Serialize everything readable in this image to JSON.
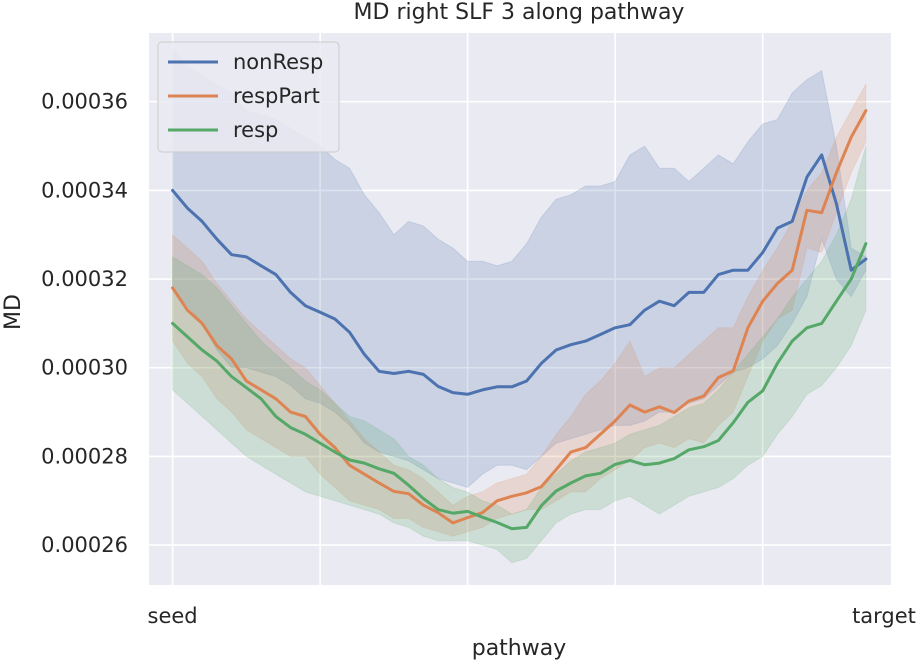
{
  "chart_data": {
    "type": "line",
    "title": "MD right SLF 3 along pathway",
    "xlabel": "pathway",
    "ylabel": "MD",
    "x_tick_labels": {
      "start": "seed",
      "end": "target"
    },
    "xlim": [
      -1.6,
      48.7
    ],
    "ylim": [
      0.000251,
      0.0003755
    ],
    "y_ticks": [
      0.00026,
      0.00028,
      0.0003,
      0.00032,
      0.00034,
      0.00036
    ],
    "y_tick_labels": [
      "0.00026",
      "0.00028",
      "0.00030",
      "0.00032",
      "0.00034",
      "0.00036"
    ],
    "grid": true,
    "legend_position": "top-left",
    "background": "#eaeaf2",
    "series": [
      {
        "name": "nonResp",
        "color": "#4c72b0",
        "x": [
          0,
          1,
          2,
          3,
          4,
          5,
          6,
          7,
          8,
          9,
          10,
          11,
          12,
          13,
          14,
          15,
          16,
          17,
          18,
          19,
          20,
          21,
          22,
          23,
          24,
          25,
          26,
          27,
          28,
          29,
          30,
          31,
          32,
          33,
          34,
          35,
          36,
          37,
          38,
          39,
          40,
          41,
          42,
          43,
          44,
          45,
          46,
          47
        ],
        "y": [
          0.00034,
          0.000336,
          0.000333,
          0.000329,
          0.0003255,
          0.000325,
          0.000323,
          0.000321,
          0.000317,
          0.000314,
          0.0003125,
          0.000311,
          0.000308,
          0.000303,
          0.0002992,
          0.0002987,
          0.0002992,
          0.0002985,
          0.0002958,
          0.0002944,
          0.000294,
          0.000295,
          0.0002957,
          0.0002957,
          0.000297,
          0.000301,
          0.000304,
          0.0003052,
          0.000306,
          0.0003075,
          0.000309,
          0.0003097,
          0.000313,
          0.000315,
          0.000314,
          0.000317,
          0.000317,
          0.000321,
          0.000322,
          0.000322,
          0.000326,
          0.0003315,
          0.000333,
          0.000343,
          0.000348,
          0.000337,
          0.000322,
          0.0003245
        ],
        "band_upper": [
          0.000372,
          0.000368,
          0.000366,
          0.000364,
          0.000362,
          0.000358,
          0.000357,
          0.000356,
          0.000354,
          0.000352,
          0.00035,
          0.000347,
          0.000345,
          0.000339,
          0.000335,
          0.00033,
          0.000333,
          0.000332,
          0.000329,
          0.000327,
          0.000324,
          0.000324,
          0.000323,
          0.000324,
          0.000328,
          0.000334,
          0.000338,
          0.000339,
          0.000341,
          0.000341,
          0.000342,
          0.000348,
          0.00035,
          0.000345,
          0.000345,
          0.000342,
          0.000345,
          0.000348,
          0.000346,
          0.000351,
          0.000355,
          0.000356,
          0.000362,
          0.000365,
          0.000367,
          0.00035,
          0.000327,
          0.000325
        ],
        "band_lower": [
          0.000318,
          0.000314,
          0.00031,
          0.000304,
          0.0003,
          0.0003,
          0.000299,
          0.000298,
          0.000296,
          0.000293,
          0.000292,
          0.00029,
          0.000287,
          0.000283,
          0.000281,
          0.00028,
          0.000279,
          0.000277,
          0.000275,
          0.000274,
          0.000273,
          0.000276,
          0.000278,
          0.000278,
          0.000277,
          0.00028,
          0.000283,
          0.000284,
          0.000285,
          0.000286,
          0.000287,
          0.000287,
          0.000288,
          0.00029,
          0.00029,
          0.000292,
          0.000293,
          0.000296,
          0.000299,
          0.0003,
          0.000302,
          0.000305,
          0.00031,
          0.000316,
          0.000329,
          0.00032,
          0.000316,
          0.000322
        ]
      },
      {
        "name": "respPart",
        "color": "#dd8452",
        "x": [
          0,
          1,
          2,
          3,
          4,
          5,
          6,
          7,
          8,
          9,
          10,
          11,
          12,
          13,
          14,
          15,
          16,
          17,
          18,
          19,
          20,
          21,
          22,
          23,
          24,
          25,
          26,
          27,
          28,
          29,
          30,
          31,
          32,
          33,
          34,
          35,
          36,
          37,
          38,
          39,
          40,
          41,
          42,
          43,
          44,
          45,
          46,
          47
        ],
        "y": [
          0.000318,
          0.000313,
          0.00031,
          0.000305,
          0.000302,
          0.000297,
          0.000295,
          0.000293,
          0.00029,
          0.000289,
          0.000285,
          0.000282,
          0.000278,
          0.000276,
          0.000274,
          0.0002721,
          0.0002716,
          0.000269,
          0.0002673,
          0.000265,
          0.0002662,
          0.0002673,
          0.00027,
          0.000271,
          0.0002718,
          0.0002732,
          0.000277,
          0.000281,
          0.000282,
          0.000285,
          0.000288,
          0.0002916,
          0.00029,
          0.0002912,
          0.0002899,
          0.0002925,
          0.0002936,
          0.0002978,
          0.0002993,
          0.000309,
          0.000315,
          0.000319,
          0.000322,
          0.0003355,
          0.000335,
          0.000344,
          0.000352,
          0.000358
        ],
        "band_upper": [
          0.00033,
          0.000327,
          0.000324,
          0.000319,
          0.000315,
          0.000311,
          0.000308,
          0.000305,
          0.000302,
          0.0003,
          0.000296,
          0.000292,
          0.000288,
          0.000284,
          0.000281,
          0.000278,
          0.000277,
          0.000275,
          0.000272,
          0.000269,
          0.000271,
          0.000272,
          0.000274,
          0.000275,
          0.000276,
          0.00028,
          0.000285,
          0.000289,
          0.000294,
          0.000297,
          0.000301,
          0.000306,
          0.000298,
          0.0003,
          0.0003,
          0.000303,
          0.000306,
          0.000309,
          0.000309,
          0.000316,
          0.000322,
          0.000327,
          0.000333,
          0.00034,
          0.000344,
          0.000352,
          0.000358,
          0.000364
        ],
        "band_lower": [
          0.000306,
          0.000301,
          0.000298,
          0.000293,
          0.00029,
          0.000286,
          0.000284,
          0.000282,
          0.00028,
          0.00028,
          0.000276,
          0.000273,
          0.00027,
          0.000269,
          0.000268,
          0.000266,
          0.000266,
          0.000264,
          0.000263,
          0.000262,
          0.000263,
          0.000264,
          0.000266,
          0.000267,
          0.000268,
          0.000268,
          0.00027,
          0.000272,
          0.000272,
          0.000275,
          0.000277,
          0.000279,
          0.000282,
          0.000283,
          0.000282,
          0.000284,
          0.000283,
          0.000287,
          0.00029,
          0.000298,
          0.000306,
          0.000311,
          0.000313,
          0.000327,
          0.000326,
          0.000335,
          0.000344,
          0.000351
        ]
      },
      {
        "name": "resp",
        "color": "#55a868",
        "x": [
          0,
          1,
          2,
          3,
          4,
          5,
          6,
          7,
          8,
          9,
          10,
          11,
          12,
          13,
          14,
          15,
          16,
          17,
          18,
          19,
          20,
          21,
          22,
          23,
          24,
          25,
          26,
          27,
          28,
          29,
          30,
          31,
          32,
          33,
          34,
          35,
          36,
          37,
          38,
          39,
          40,
          41,
          42,
          43,
          44,
          45,
          46,
          47
        ],
        "y": [
          0.00031,
          0.000307,
          0.000304,
          0.0003015,
          0.000298,
          0.0002955,
          0.000293,
          0.000289,
          0.0002865,
          0.000285,
          0.000283,
          0.000281,
          0.0002792,
          0.0002785,
          0.0002772,
          0.0002762,
          0.0002735,
          0.0002705,
          0.000268,
          0.0002672,
          0.0002676,
          0.0002663,
          0.0002651,
          0.0002637,
          0.000264,
          0.0002689,
          0.0002722,
          0.000274,
          0.0002756,
          0.0002762,
          0.0002782,
          0.0002791,
          0.0002781,
          0.0002785,
          0.0002795,
          0.0002815,
          0.0002822,
          0.0002836,
          0.0002876,
          0.0002922,
          0.0002948,
          0.000301,
          0.000306,
          0.000309,
          0.00031,
          0.000315,
          0.00032,
          0.000328
        ],
        "band_upper": [
          0.000325,
          0.000323,
          0.000321,
          0.000318,
          0.000314,
          0.00031,
          0.000306,
          0.000303,
          0.0003,
          0.000297,
          0.000295,
          0.000292,
          0.000289,
          0.000288,
          0.000286,
          0.000284,
          0.00028,
          0.000278,
          0.000275,
          0.000273,
          0.000272,
          0.00027,
          0.000269,
          0.000267,
          0.000268,
          0.000273,
          0.000276,
          0.000279,
          0.000281,
          0.000282,
          0.000283,
          0.000285,
          0.000286,
          0.000287,
          0.000289,
          0.000291,
          0.000292,
          0.000295,
          0.000299,
          0.000303,
          0.000307,
          0.000311,
          0.000316,
          0.00032,
          0.000324,
          0.00033,
          0.000338,
          0.00035
        ],
        "band_lower": [
          0.000295,
          0.000292,
          0.000289,
          0.000286,
          0.000283,
          0.00028,
          0.000278,
          0.000276,
          0.000274,
          0.000272,
          0.000271,
          0.00027,
          0.000269,
          0.000268,
          0.000267,
          0.000265,
          0.000264,
          0.000262,
          0.000261,
          0.000261,
          0.000261,
          0.00026,
          0.000259,
          0.000256,
          0.000257,
          0.000261,
          0.000265,
          0.000267,
          0.000268,
          0.000268,
          0.00027,
          0.000271,
          0.000269,
          0.000267,
          0.000269,
          0.000271,
          0.000272,
          0.000273,
          0.000275,
          0.000278,
          0.00028,
          0.000285,
          0.000289,
          0.000294,
          0.000296,
          0.0003,
          0.000305,
          0.000313
        ]
      }
    ]
  }
}
